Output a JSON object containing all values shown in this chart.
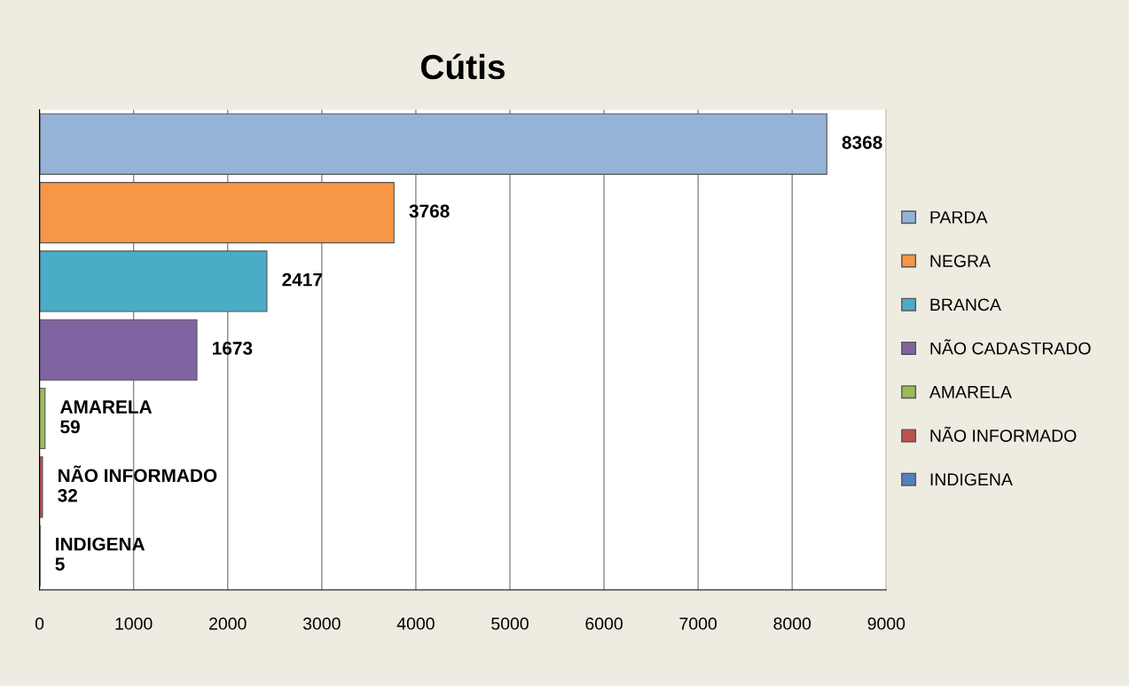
{
  "chart_data": {
    "type": "bar",
    "orientation": "horizontal",
    "title": "Cútis",
    "categories": [
      null,
      null,
      null,
      null,
      null,
      null,
      null
    ],
    "series": [
      {
        "name": "PARDA",
        "color": "#95b3d7",
        "values": [
          8368,
          null,
          null,
          null,
          null,
          null,
          null
        ],
        "value_labels": [
          "8368",
          null,
          null,
          null,
          null,
          null,
          null
        ]
      },
      {
        "name": "NEGRA",
        "color": "#f79646",
        "values": [
          null,
          3768,
          null,
          null,
          null,
          null,
          null
        ],
        "value_labels": [
          null,
          "3768",
          null,
          null,
          null,
          null,
          null
        ]
      },
      {
        "name": "BRANCA",
        "color": "#4bacc6",
        "values": [
          null,
          null,
          2417,
          null,
          null,
          null,
          null
        ],
        "value_labels": [
          null,
          null,
          "2417",
          null,
          null,
          null,
          null
        ]
      },
      {
        "name": "NÃO CADASTRADO",
        "color": "#8064a2",
        "values": [
          null,
          null,
          null,
          1673,
          null,
          null,
          null
        ],
        "value_labels": [
          null,
          null,
          null,
          "1673",
          null,
          null,
          null
        ]
      },
      {
        "name": "AMARELA",
        "color": "#9bbb59",
        "values": [
          null,
          null,
          null,
          null,
          59,
          null,
          null
        ],
        "value_labels": [
          null,
          null,
          null,
          null,
          "AMARELA\n59",
          null,
          null
        ]
      },
      {
        "name": "NÃO INFORMADO",
        "color": "#c0504d",
        "values": [
          null,
          null,
          null,
          null,
          null,
          32,
          null
        ],
        "value_labels": [
          null,
          null,
          null,
          null,
          null,
          "NÃO INFORMADO\n32",
          null
        ]
      },
      {
        "name": "INDIGENA",
        "color": "#4f81bd",
        "values": [
          null,
          null,
          null,
          null,
          null,
          null,
          5
        ],
        "value_labels": [
          null,
          null,
          null,
          null,
          null,
          null,
          "INDIGENA\n5"
        ]
      }
    ],
    "xlim": [
      0,
      9000
    ],
    "xticks": [
      0,
      1000,
      2000,
      3000,
      4000,
      5000,
      6000,
      7000,
      8000,
      9000
    ],
    "grid": "x",
    "legend": "right",
    "tick_labels": "x"
  }
}
